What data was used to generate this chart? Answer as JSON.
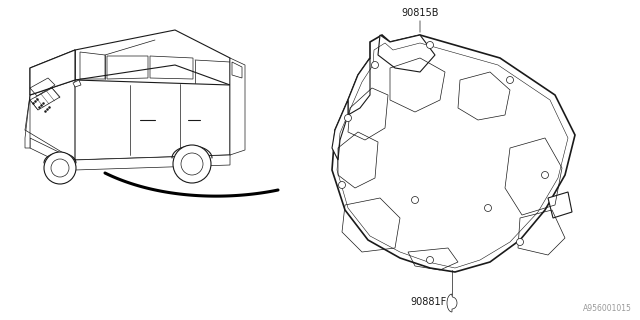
{
  "bg_color": "#ffffff",
  "line_color": "#1a1a1a",
  "label_90815B": "90815B",
  "label_90881F": "90881F",
  "watermark": "A956001015",
  "thin_lw": 0.5,
  "med_lw": 0.8,
  "thick_lw": 1.2,
  "arrow_lw": 2.2
}
